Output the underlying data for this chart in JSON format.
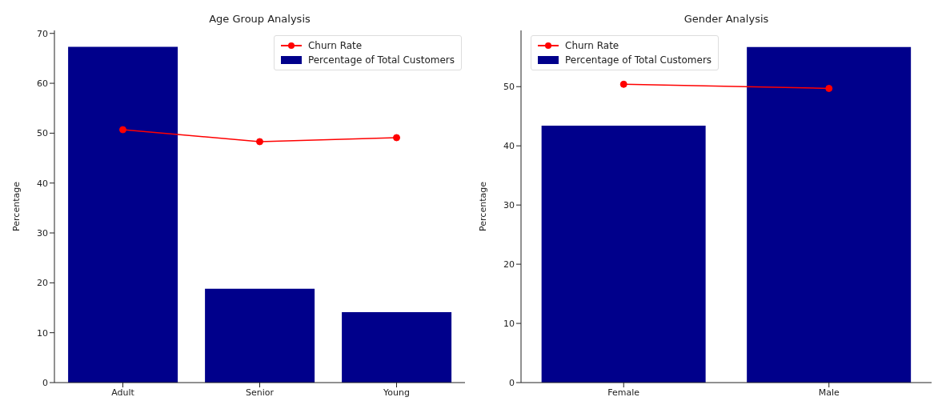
{
  "chart_data": [
    {
      "type": "bar",
      "title": "Age Group Analysis",
      "ylabel": "Percentage",
      "categories": [
        "Adult",
        "Senior",
        "Young"
      ],
      "ylim": [
        0,
        70.6
      ],
      "yticks": [
        0,
        10,
        20,
        30,
        40,
        50,
        60,
        70
      ],
      "legend": "top right",
      "marker": "circle",
      "grid": false,
      "series": [
        {
          "name": "Churn Rate",
          "type": "line",
          "color": "#ff0000",
          "values": [
            50.7,
            48.3,
            49.1
          ]
        },
        {
          "name": "Percentage of Total Customers",
          "color": "#00008b",
          "values": [
            67.3,
            18.8,
            14.1
          ]
        }
      ]
    },
    {
      "type": "bar",
      "title": "Gender Analysis",
      "ylabel": "Percentage",
      "categories": [
        "Female",
        "Male"
      ],
      "ylim": [
        0,
        59.5
      ],
      "yticks": [
        0,
        10,
        20,
        30,
        40,
        50
      ],
      "legend": "top left",
      "marker": "circle",
      "grid": false,
      "series": [
        {
          "name": "Churn Rate",
          "type": "line",
          "color": "#ff0000",
          "values": [
            50.4,
            49.7
          ]
        },
        {
          "name": "Percentage of Total Customers",
          "color": "#00008b",
          "values": [
            43.4,
            56.7
          ]
        }
      ]
    }
  ]
}
